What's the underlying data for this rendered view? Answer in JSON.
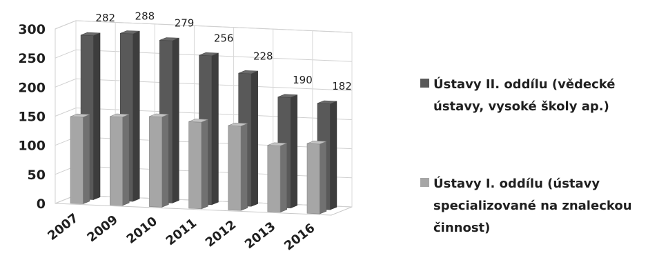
{
  "chart_data": {
    "type": "bar",
    "categories": [
      "2007",
      "2009",
      "2010",
      "2011",
      "2012",
      "2013",
      "2016"
    ],
    "series": [
      {
        "name": "Ústavy II. oddílu (vědecké ústavy, vysoké školy ap.)",
        "name_lines": [
          "Ústavy II. oddílu (vědecké",
          "ústavy, vysoké školy ap.)"
        ],
        "values": [
          282,
          288,
          279,
          256,
          228,
          190,
          182
        ],
        "color": "#595959",
        "data_labels": true
      },
      {
        "name": "Ústavy I. oddílu (ústavy specializované na znaleckou činnost)",
        "name_lines": [
          "Ústavy I. oddílu (ústavy",
          "specializované na znaleckou",
          "činnost)"
        ],
        "values": [
          149,
          152,
          155,
          149,
          145,
          114,
          120
        ],
        "color": "#a6a6a6",
        "data_labels": false
      }
    ],
    "yticks": [
      "0",
      "50",
      "100",
      "150",
      "200",
      "250",
      "300"
    ],
    "ylim": [
      0,
      300
    ],
    "grid": true,
    "three_d": true,
    "legend_position": "right"
  }
}
